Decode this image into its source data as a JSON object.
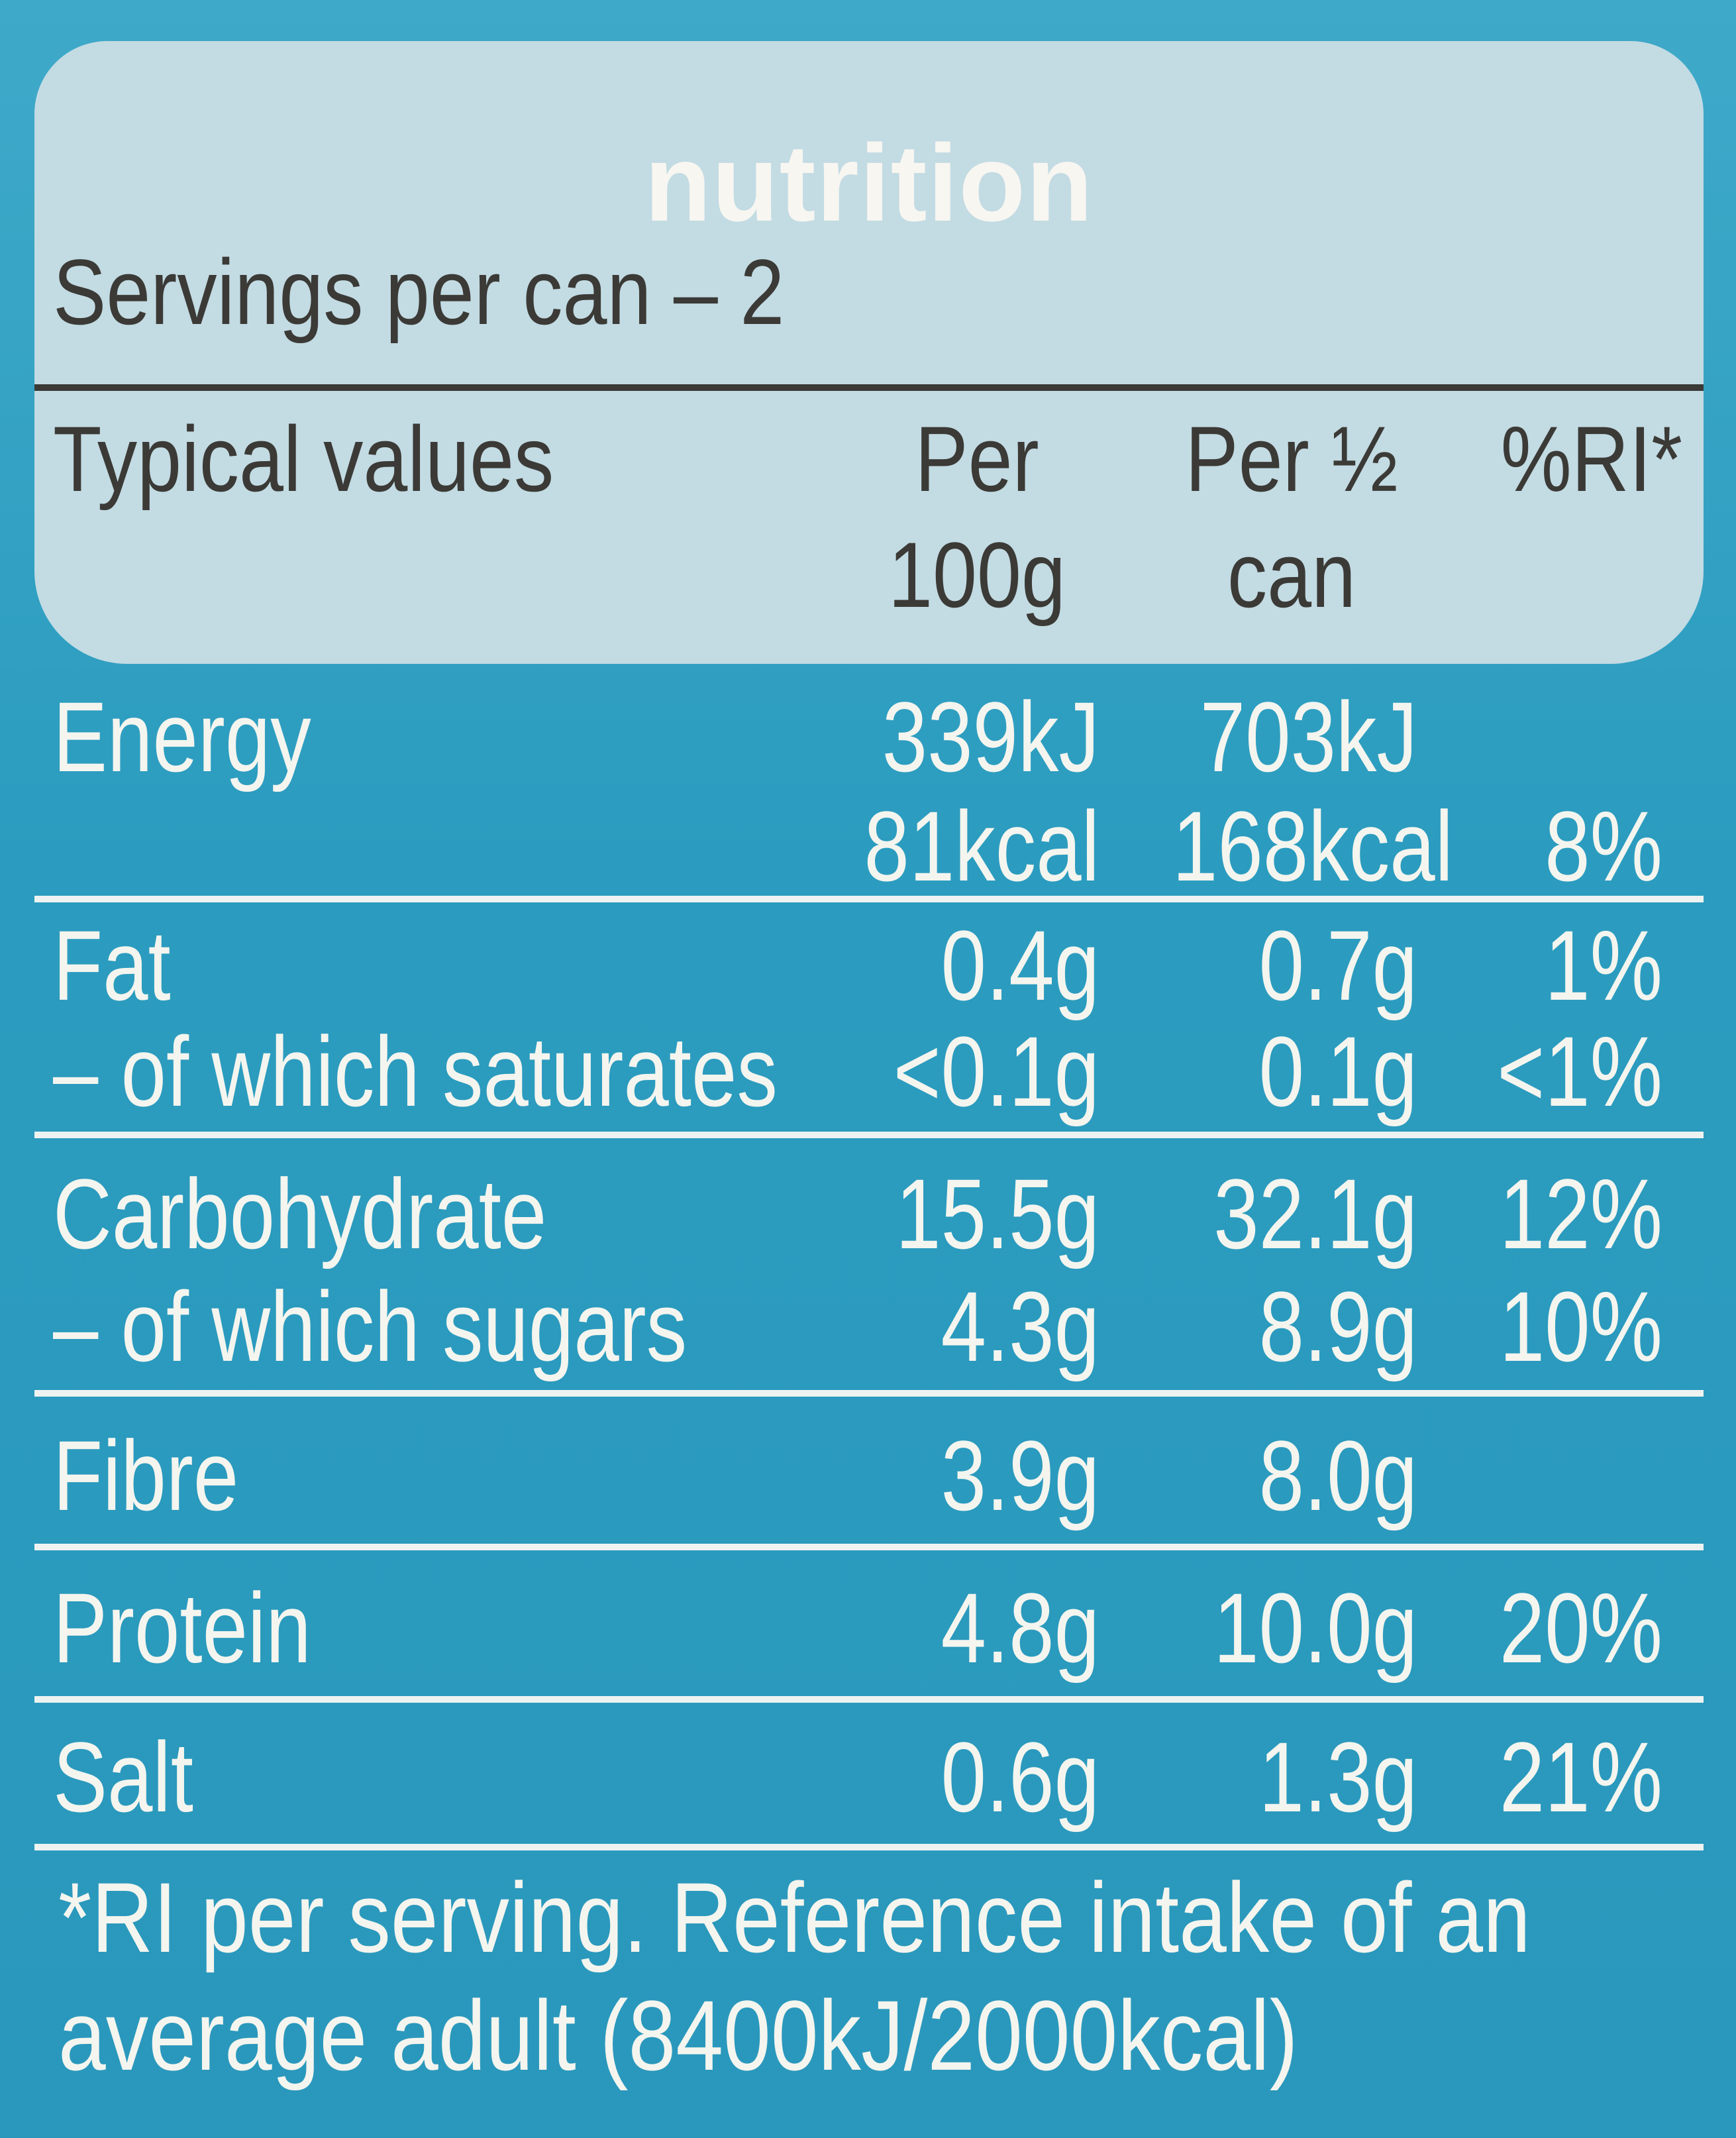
{
  "title": "nutrition",
  "servings": "Servings per can – 2",
  "headers": {
    "typical": "Typical values",
    "per100_line1": "Per",
    "per100_line2": "100g",
    "perhalf_line1": "Per ½",
    "perhalf_line2": "can",
    "ri": "%RI*"
  },
  "rows": {
    "energy": {
      "label": "Energy",
      "per100_kj": "339kJ",
      "per100_kcal": "81kcal",
      "half_kj": "703kJ",
      "half_kcal": "168kcal",
      "ri": "8%"
    },
    "fat": {
      "label": "Fat",
      "per100": "0.4g",
      "half": "0.7g",
      "ri": "1%"
    },
    "saturates": {
      "label": "– of which saturates",
      "per100": "<0.1g",
      "half": "0.1g",
      "ri": "<1%"
    },
    "carbohydrate": {
      "label": "Carbohydrate",
      "per100": "15.5g",
      "half": "32.1g",
      "ri": "12%"
    },
    "sugars": {
      "label": "– of which sugars",
      "per100": "4.3g",
      "half": "8.9g",
      "ri": "10%"
    },
    "fibre": {
      "label": "Fibre",
      "per100": "3.9g",
      "half": "8.0g"
    },
    "protein": {
      "label": "Protein",
      "per100": "4.8g",
      "half": "10.0g",
      "ri": "20%"
    },
    "salt": {
      "label": "Salt",
      "per100": "0.6g",
      "half": "1.3g",
      "ri": "21%"
    }
  },
  "footnote": {
    "line1": "*RI per serving. Reference intake of an",
    "line2": "average adult (8400kJ/2000kcal)"
  },
  "colors": {
    "background": "#2f9fc2",
    "header_panel": "#c3dbe3",
    "header_text": "#3b3a36",
    "body_text": "#f4f5ef"
  }
}
